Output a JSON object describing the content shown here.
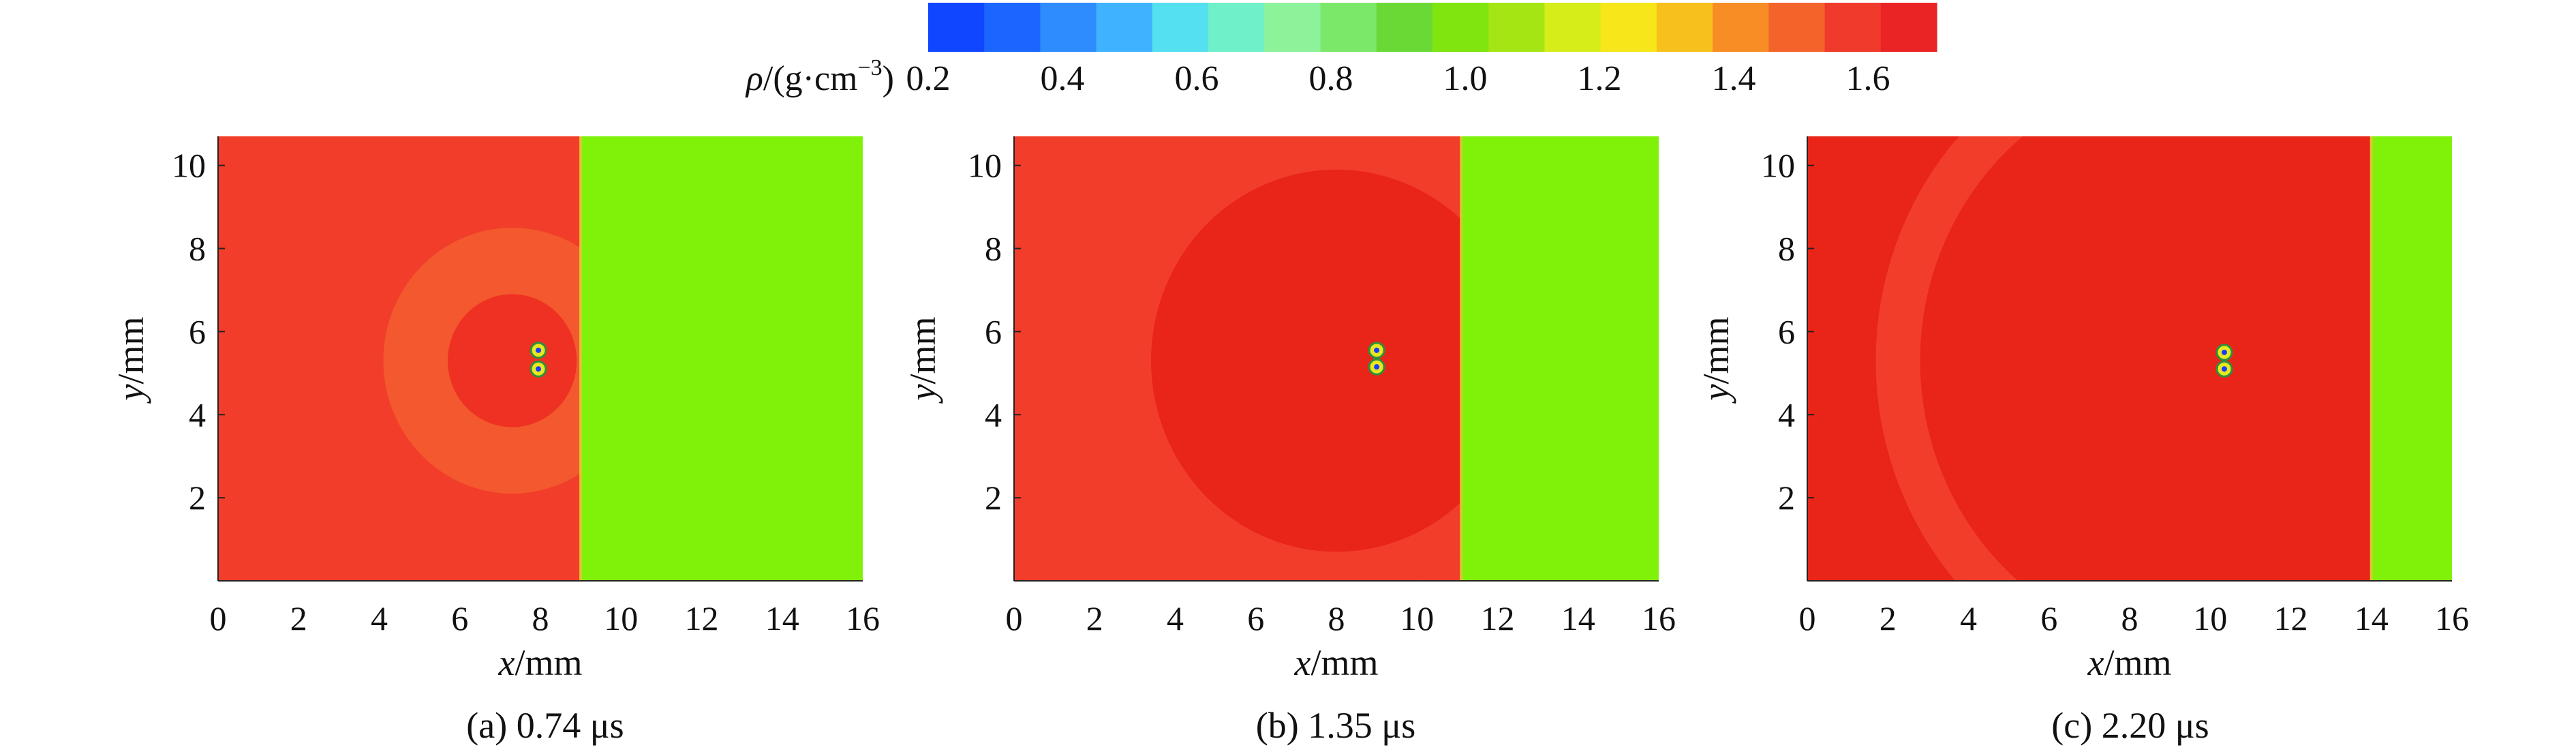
{
  "colorbar": {
    "quantity": "ρ",
    "unit_prefix": "/(g·cm",
    "unit_exponent": "−3",
    "unit_suffix": ")",
    "ticks": [
      "0.2",
      "0.4",
      "0.6",
      "0.8",
      "1.0",
      "1.2",
      "1.4",
      "1.6"
    ],
    "range": [
      0.2,
      1.7
    ],
    "colors": [
      "#1046ff",
      "#1a66ff",
      "#2e8cff",
      "#3fb3ff",
      "#55e0f0",
      "#6ff0c8",
      "#8ef29a",
      "#7be86a",
      "#6ad936",
      "#80e40e",
      "#a5e514",
      "#d6ed1a",
      "#f6e61a",
      "#f8c01c",
      "#f78d24",
      "#f3642a",
      "#ef3a2c",
      "#ea2424"
    ]
  },
  "chart_data": [
    {
      "type": "heatmap",
      "title": "",
      "caption": "(a) 0.74 μs",
      "xlabel": "x/mm",
      "ylabel": "y/mm",
      "xlim": [
        0,
        16
      ],
      "ylim": [
        0,
        10.7
      ],
      "xticks": [
        "0",
        "2",
        "4",
        "6",
        "8",
        "10",
        "12",
        "14",
        "16"
      ],
      "yticks": [
        "2",
        "4",
        "6",
        "8",
        "10"
      ],
      "fields": {
        "left_region_density": 1.62,
        "right_region_density": 1.0,
        "interface_x": 9.0,
        "spherical_wave": {
          "center": [
            7.3,
            5.3
          ],
          "inner_radius": 1.8,
          "outer_radius": 3.2,
          "density": 1.55
        },
        "inner_zone": {
          "center": [
            7.3,
            5.3
          ],
          "radius": 1.6,
          "density": 1.65
        },
        "hot_spots": [
          [
            7.95,
            5.55
          ],
          [
            7.95,
            5.1
          ]
        ]
      }
    },
    {
      "type": "heatmap",
      "title": "",
      "caption": "(b) 1.35 μs",
      "xlabel": "x/mm",
      "ylabel": "y/mm",
      "xlim": [
        0,
        16
      ],
      "ylim": [
        0,
        10.7
      ],
      "xticks": [
        "0",
        "2",
        "4",
        "6",
        "8",
        "10",
        "12",
        "14",
        "16"
      ],
      "yticks": [
        "2",
        "4",
        "6",
        "8",
        "10"
      ],
      "fields": {
        "left_region_density": 1.62,
        "right_region_density": 1.0,
        "interface_x": 11.1,
        "spherical_wave": {
          "center": [
            8.0,
            5.3
          ],
          "inner_radius": 4.6,
          "outer_radius": 5.6,
          "density": 1.62
        },
        "inner_zone": {
          "center": [
            8.0,
            5.3
          ],
          "radius": 4.6,
          "density": 1.68
        },
        "hot_spots": [
          [
            9.0,
            5.55
          ],
          [
            9.0,
            5.15
          ]
        ]
      }
    },
    {
      "type": "heatmap",
      "title": "",
      "caption": "(c) 2.20 μs",
      "xlabel": "x/mm",
      "ylabel": "y/mm",
      "xlim": [
        0,
        16
      ],
      "ylim": [
        0,
        10.7
      ],
      "xticks": [
        "0",
        "2",
        "4",
        "6",
        "8",
        "10",
        "12",
        "14",
        "16"
      ],
      "yticks": [
        "2",
        "4",
        "6",
        "8",
        "10"
      ],
      "fields": {
        "left_region_density": 1.68,
        "right_region_density": 1.0,
        "interface_x": 14.0,
        "spherical_wave": {
          "center": [
            9.8,
            5.3
          ],
          "inner_radius": 7.0,
          "outer_radius": 8.1,
          "density": 1.62
        },
        "inner_zone": {
          "center": [
            9.8,
            5.3
          ],
          "radius": 7.0,
          "density": 1.68
        },
        "hot_spots": [
          [
            10.35,
            5.5
          ],
          [
            10.35,
            5.1
          ]
        ]
      }
    }
  ]
}
